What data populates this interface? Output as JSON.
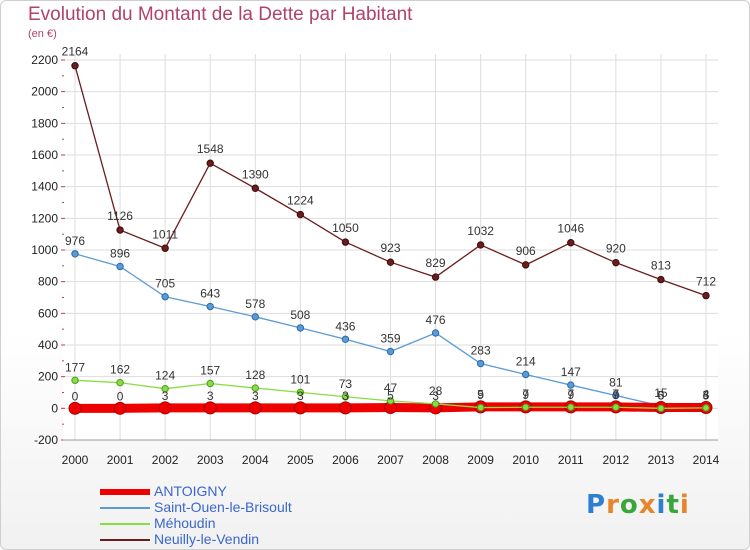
{
  "header": {
    "title": "Evolution du Montant de la Dette par Habitant",
    "subtitle": "(en €)"
  },
  "logo": {
    "text": "Proxiti"
  },
  "chart_data": {
    "type": "line",
    "title": "Evolution du Montant de la Dette par Habitant",
    "subtitle": "(en €)",
    "xlabel": "",
    "ylabel": "",
    "x": [
      "2000",
      "2001",
      "2002",
      "2003",
      "2004",
      "2005",
      "2006",
      "2007",
      "2008",
      "2009",
      "2010",
      "2011",
      "2012",
      "2013",
      "2014"
    ],
    "ylim": [
      -200,
      2200
    ],
    "yticks": [
      -200,
      0,
      200,
      400,
      600,
      800,
      1000,
      1200,
      1400,
      1600,
      1800,
      2000,
      2200
    ],
    "grid": true,
    "legend_position": "bottom-left",
    "series": [
      {
        "name": "ANTOIGNY",
        "color": "#ee0000",
        "values": [
          0,
          0,
          3,
          3,
          3,
          3,
          3,
          5,
          3,
          9,
          9,
          9,
          9,
          5,
          5
        ],
        "labels": [
          "0",
          "0",
          "3",
          "3",
          "3",
          "3",
          "3",
          "5",
          "3",
          "9",
          "9",
          "9",
          "9",
          "5",
          "5"
        ]
      },
      {
        "name": "Saint-Ouen-le-Brisoult",
        "color": "#5b9bd5",
        "values": [
          976,
          896,
          705,
          643,
          578,
          508,
          436,
          359,
          476,
          283,
          214,
          147,
          81,
          15,
          4
        ],
        "labels": [
          "976",
          "896",
          "705",
          "643",
          "578",
          "508",
          "436",
          "359",
          "476",
          "283",
          "214",
          "147",
          "81",
          "15",
          "4"
        ]
      },
      {
        "name": "Méhoudin",
        "color": "#88dd44",
        "values": [
          177,
          162,
          124,
          157,
          128,
          101,
          73,
          47,
          28,
          5,
          7,
          7,
          7,
          0,
          3
        ],
        "labels": [
          "177",
          "162",
          "124",
          "157",
          "128",
          "101",
          "73",
          "47",
          "28",
          "5",
          "7",
          "7",
          "7",
          "0",
          "3"
        ]
      },
      {
        "name": "Neuilly-le-Vendin",
        "color": "#6b1d1d",
        "values": [
          2164,
          1126,
          1011,
          1548,
          1390,
          1224,
          1050,
          923,
          829,
          1032,
          906,
          1046,
          920,
          813,
          712
        ],
        "labels": [
          "2164",
          "1126",
          "1011",
          "1548",
          "1390",
          "1224",
          "1050",
          "923",
          "829",
          "1032",
          "906",
          "1046",
          "920",
          "813",
          "712"
        ]
      }
    ]
  }
}
